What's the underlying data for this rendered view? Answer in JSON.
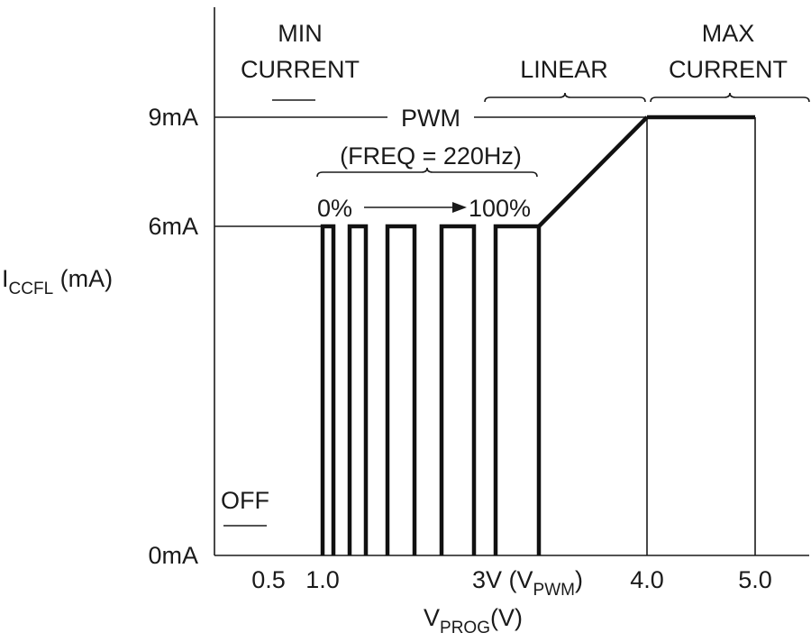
{
  "chart_data": {
    "type": "line",
    "ylabel_main": "I",
    "ylabel_sub": "CCFL",
    "ylabel_unit": " (mA)",
    "xlabel_main": "V",
    "xlabel_sub": "PROG",
    "xlabel_unit": "(V)",
    "y_ticks": [
      {
        "value": 0,
        "label": "0mA"
      },
      {
        "value": 6,
        "label": "6mA"
      },
      {
        "value": 9,
        "label": "9mA"
      }
    ],
    "x_ticks": [
      {
        "value": 0.5,
        "label": "0.5"
      },
      {
        "value": 1.0,
        "label": "1.0"
      },
      {
        "value": 4.0,
        "label": "4.0"
      },
      {
        "value": 5.0,
        "label": "5.0"
      }
    ],
    "x_tick_vpwm": {
      "value": 3.0,
      "prefix": "3V (V",
      "sub": "PWM",
      "suffix": ")"
    },
    "region_labels": {
      "min_current_line1": "MIN",
      "min_current_line2": "CURRENT",
      "linear": "LINEAR",
      "max_current_line1": "MAX",
      "max_current_line2": "CURRENT",
      "off": "OFF",
      "pwm": "PWM",
      "freq": "(FREQ = 220Hz)",
      "duty_start": "0%",
      "duty_end": "100%"
    },
    "pwm_pulses": [
      {
        "x_start": 1.0,
        "x_end": 1.1
      },
      {
        "x_start": 1.25,
        "x_end": 1.4
      },
      {
        "x_start": 1.6,
        "x_end": 1.85
      },
      {
        "x_start": 2.1,
        "x_end": 2.4
      },
      {
        "x_start": 2.6,
        "x_end": 3.0
      }
    ],
    "pwm_level": 6,
    "linear_segment": [
      [
        3.0,
        6
      ],
      [
        4.0,
        9
      ]
    ],
    "max_segment": [
      [
        4.0,
        9
      ],
      [
        5.0,
        9
      ]
    ],
    "ylim": [
      0,
      10
    ],
    "xlim": [
      0,
      5.5
    ],
    "grid": false
  }
}
